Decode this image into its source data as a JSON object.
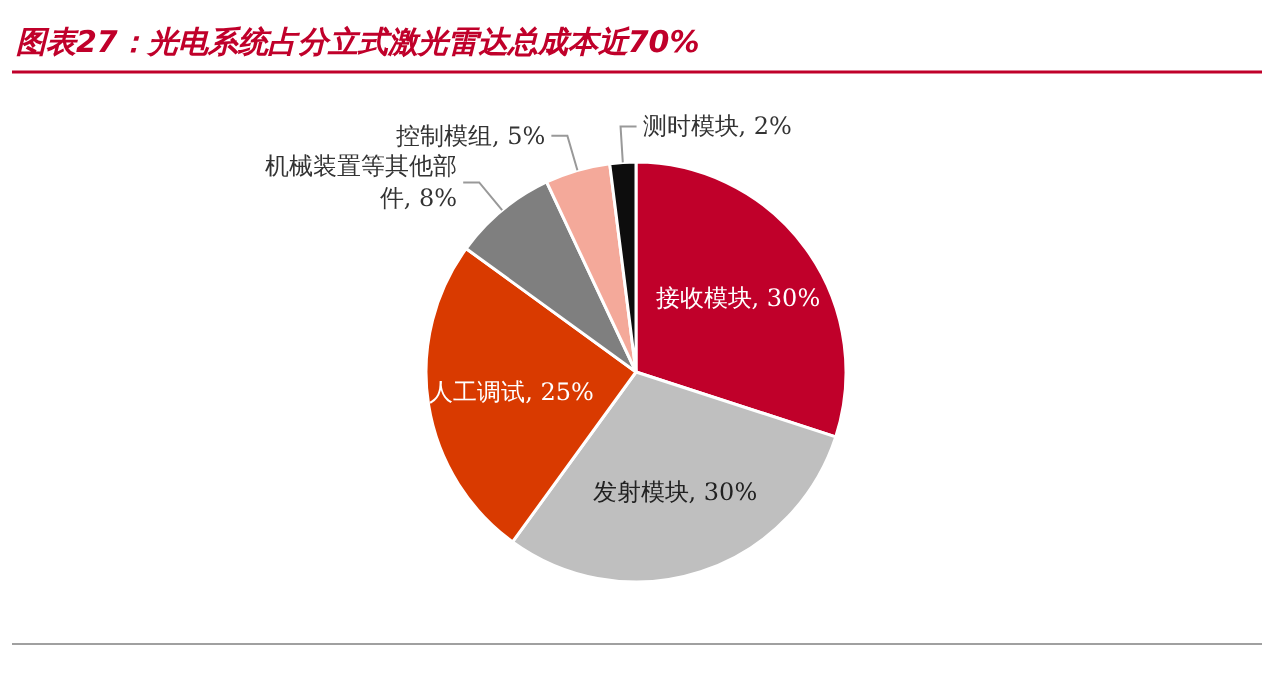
{
  "chart_data": {
    "type": "pie",
    "title": "图表27：光电系统占分立式激光雷达总成本近70%",
    "categories": [
      "接收模块",
      "发射模块",
      "人工调试",
      "机械装置等其他部件",
      "控制模组",
      "测时模块"
    ],
    "values": [
      30,
      30,
      25,
      8,
      5,
      2
    ],
    "value_labels": [
      ", 30%",
      ", 30%",
      ", 25%",
      ", 8%",
      ", 5%",
      ", 2%"
    ],
    "colors": [
      "#c0002a",
      "#bfbfbf",
      "#d93a00",
      "#7f7f7f",
      "#f4a99a",
      "#0d0d0d"
    ]
  }
}
